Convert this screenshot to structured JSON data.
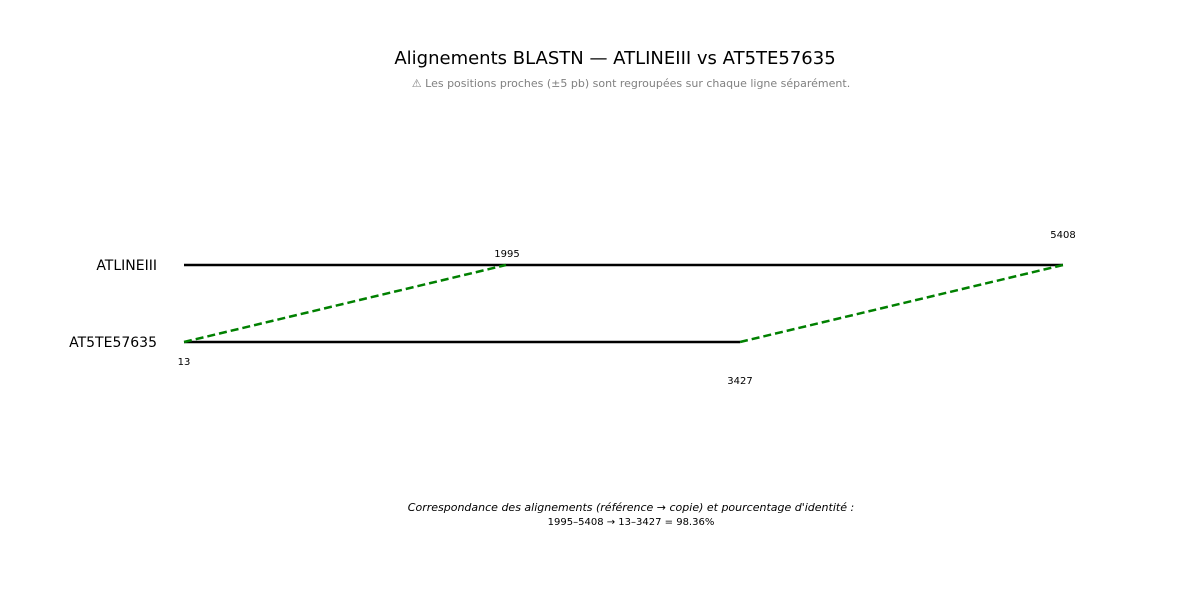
{
  "title": "Alignements BLASTN — ATLINEIII vs AT5TE57635",
  "subtitle": "⚠ Les positions proches (±5 pb) sont regroupées sur chaque ligne séparément.",
  "sequences": {
    "reference": {
      "label": "ATLINEIII"
    },
    "copy": {
      "label": "AT5TE57635"
    }
  },
  "alignments": [
    {
      "ref_start": 1995,
      "ref_end": 5408,
      "copy_start": 13,
      "copy_end": 3427,
      "identity": 98.36
    }
  ],
  "tick_labels": {
    "ref_start": "1995",
    "ref_end": "5408",
    "copy_start": "13",
    "copy_end": "3427"
  },
  "footer": {
    "label": "Correspondance des alignements (référence → copie) et pourcentage d'identité :",
    "detail": "1995–5408 → 13–3427 = 98.36%"
  },
  "colors": {
    "sequence_line": "#000000",
    "alignment_link": "#008000"
  }
}
